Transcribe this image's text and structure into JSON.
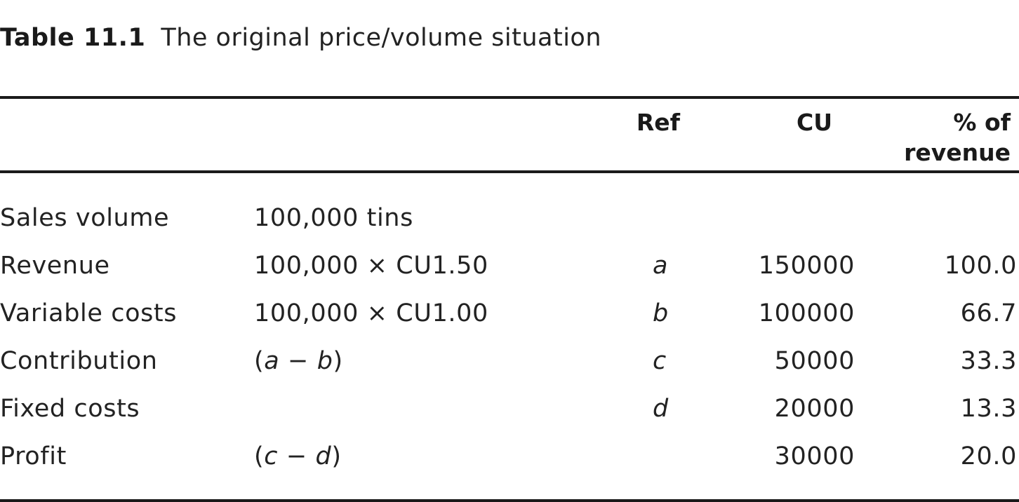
{
  "caption": {
    "number": "Table 11.1",
    "title": "The original price/volume situation"
  },
  "headers": {
    "ref": "Ref",
    "cu": "CU",
    "pct_line1": "% of",
    "pct_line2": "revenue"
  },
  "rows": [
    {
      "label": "Sales volume",
      "formula": "100,000 tins",
      "ref": "",
      "cu": "",
      "pct": ""
    },
    {
      "label": "Revenue",
      "formula": "100,000 × CU1.50",
      "ref": "a",
      "cu": "150000",
      "pct": "100.0"
    },
    {
      "label": "Variable costs",
      "formula": "100,000 × CU1.00",
      "ref": "b",
      "cu": "100000",
      "pct": "66.7"
    },
    {
      "label": "Contribution",
      "formula_open": "(",
      "formula_x": "a",
      "formula_op": " − ",
      "formula_y": "b",
      "formula_close": ")",
      "ref": "c",
      "cu": "50000",
      "pct": "33.3"
    },
    {
      "label": "Fixed costs",
      "formula": "",
      "ref": "d",
      "cu": "20000",
      "pct": "13.3"
    },
    {
      "label": "Profit",
      "formula_open": "(",
      "formula_x": "c",
      "formula_op": " − ",
      "formula_y": "d",
      "formula_close": ")",
      "ref": "",
      "cu": "30000",
      "pct": "20.0"
    }
  ]
}
